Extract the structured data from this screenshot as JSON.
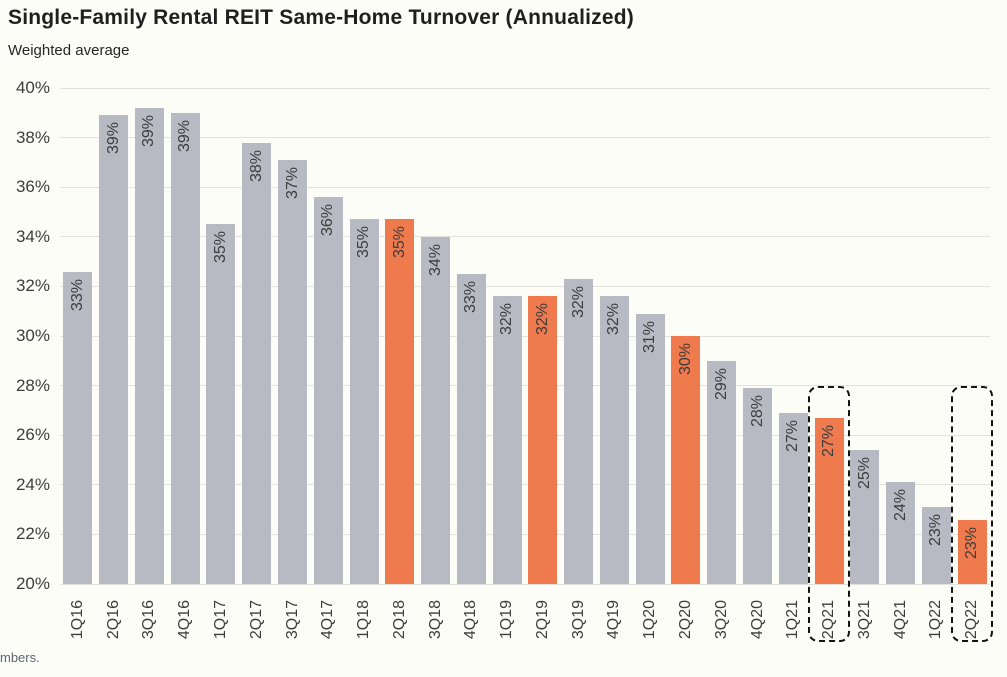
{
  "header": {
    "title": "Single-Family Rental REIT Same-Home Turnover (Annualized)",
    "subtitle": "Weighted average"
  },
  "footnote_fragment": "mbers.",
  "colors": {
    "background": "#fdfdf8",
    "bar_gray": "#b7bac3",
    "bar_highlight_orange": "#ee7a4e",
    "gridline": "#e3e3de",
    "label_text": "#3d3d3d",
    "title_text": "#1f1f1f",
    "dashed_box_border": "#141414"
  },
  "chart_data": {
    "type": "bar",
    "title": "Single-Family Rental REIT Same-Home Turnover (Annualized)",
    "subtitle": "Weighted average",
    "xlabel": "",
    "ylabel": "",
    "ylim": [
      20,
      40
    ],
    "ytick_step": 2,
    "ytick_suffix": "%",
    "grid": true,
    "legend": "none",
    "categories": [
      "1Q16",
      "2Q16",
      "3Q16",
      "4Q16",
      "1Q17",
      "2Q17",
      "3Q17",
      "4Q17",
      "1Q18",
      "2Q18",
      "3Q18",
      "4Q18",
      "1Q19",
      "2Q19",
      "3Q19",
      "4Q19",
      "1Q20",
      "2Q20",
      "3Q20",
      "4Q20",
      "1Q21",
      "2Q21",
      "3Q21",
      "4Q21",
      "1Q22",
      "2Q22"
    ],
    "values": [
      32.6,
      38.9,
      39.2,
      39.0,
      34.5,
      37.8,
      37.1,
      35.6,
      34.7,
      34.7,
      34.0,
      32.5,
      31.6,
      31.6,
      32.3,
      31.6,
      30.9,
      30.0,
      29.0,
      27.9,
      26.9,
      26.7,
      25.4,
      24.1,
      23.1,
      22.6
    ],
    "labels": [
      "33%",
      "39%",
      "39%",
      "39%",
      "35%",
      "38%",
      "37%",
      "36%",
      "35%",
      "35%",
      "34%",
      "33%",
      "32%",
      "32%",
      "32%",
      "32%",
      "31%",
      "30%",
      "29%",
      "28%",
      "27%",
      "27%",
      "25%",
      "24%",
      "23%",
      "23%"
    ],
    "highlighted_categories": [
      "2Q18",
      "2Q19",
      "2Q20",
      "2Q21",
      "2Q22"
    ],
    "boxed_categories": [
      "2Q21",
      "2Q22"
    ],
    "box_top_value": 28
  }
}
